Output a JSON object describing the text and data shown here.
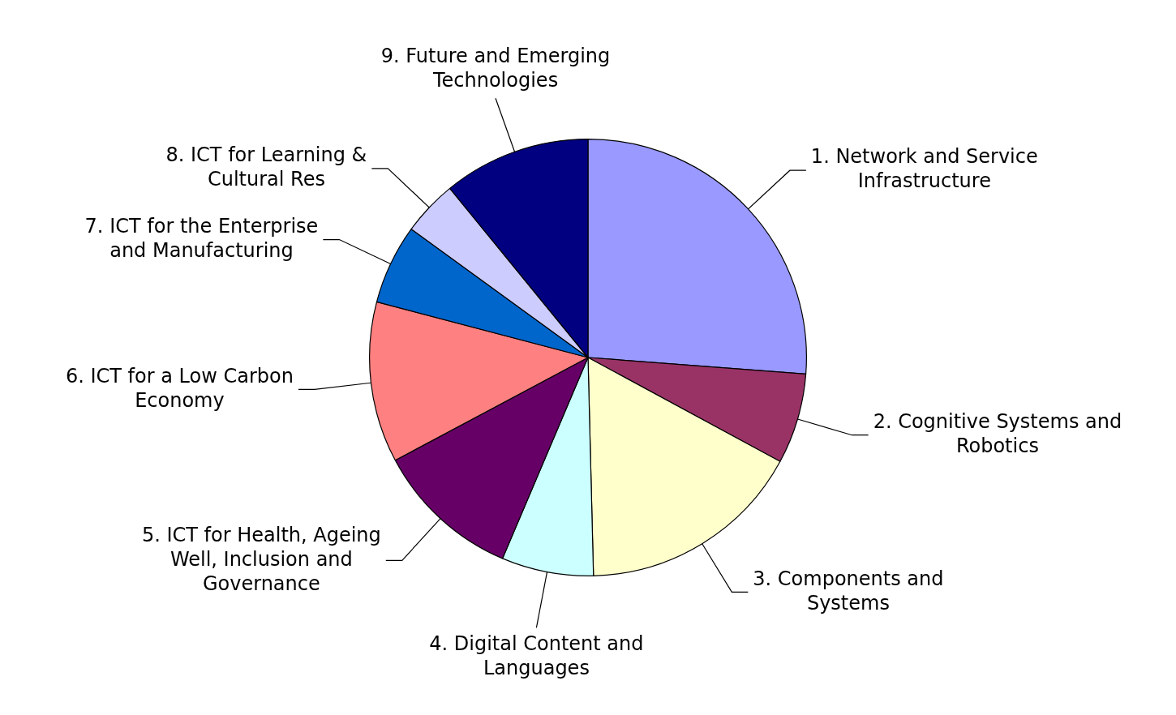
{
  "chart_data": {
    "type": "pie",
    "categories": [
      "1. Network and Service Infrastructure",
      "2. Cognitive Systems and Robotics",
      "3. Components and Systems",
      "4. Digital Content and Languages",
      "5. ICT for Health, Ageing Well, Inclusion and Governance",
      "6. ICT for a Low Carbon Economy",
      "7. ICT for the Enterprise and Manufacturing",
      "8. ICT for Learning & Cultural Res",
      "9. Future and Emerging Technologies"
    ],
    "values": [
      26.2,
      6.7,
      16.7,
      6.8,
      10.8,
      11.9,
      5.9,
      4.1,
      10.9
    ],
    "colors": [
      "#9999ff",
      "#993366",
      "#ffffcc",
      "#ccffff",
      "#660066",
      "#ff8080",
      "#0066cc",
      "#ccccff",
      "#000080"
    ],
    "legend": false
  }
}
